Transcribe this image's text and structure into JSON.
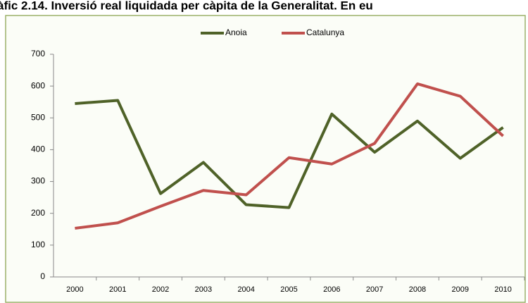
{
  "chart_data": {
    "type": "line",
    "title": "àfic 2.14. Inversió real liquidada per càpita de la Generalitat. En eu",
    "categories": [
      "2000",
      "2001",
      "2002",
      "2003",
      "2004",
      "2005",
      "2006",
      "2007",
      "2008",
      "2009",
      "2010"
    ],
    "series": [
      {
        "name": "Anoia",
        "color": "#4f6228",
        "values": [
          545,
          555,
          262,
          360,
          227,
          218,
          512,
          392,
          490,
          373,
          470
        ]
      },
      {
        "name": "Catalunya",
        "color": "#c0504d",
        "values": [
          153,
          170,
          222,
          272,
          258,
          375,
          355,
          420,
          607,
          568,
          443
        ]
      }
    ],
    "ylim": [
      0,
      700
    ],
    "yticks": [
      0,
      100,
      200,
      300,
      400,
      500,
      600,
      700
    ],
    "grid": false,
    "legend": "top"
  }
}
